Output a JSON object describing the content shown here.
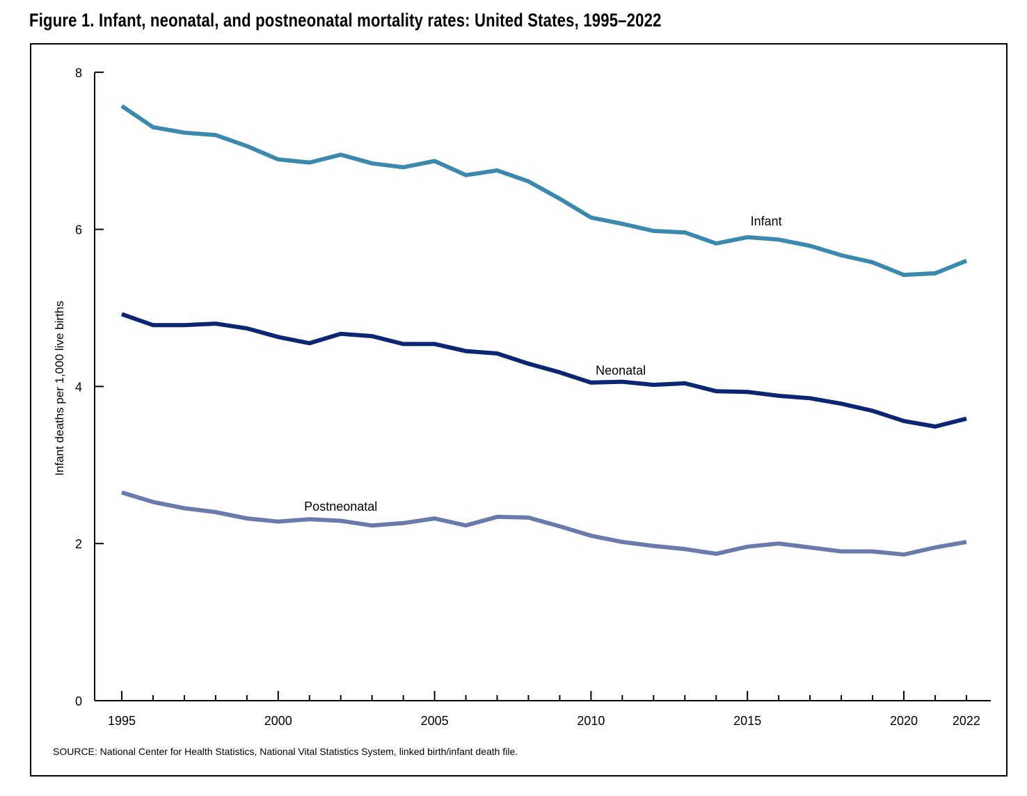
{
  "figure": {
    "title": "Figure 1. Infant, neonatal, and postneonatal mortality rates: United States, 1995–2022",
    "source": "SOURCE: National Center for Health Statistics, National Vital Statistics System, linked birth/infant death file."
  },
  "chart_data": {
    "type": "line",
    "title": "Figure 1. Infant, neonatal, and postneonatal mortality rates: United States, 1995–2022",
    "xlabel": "",
    "ylabel": "Infant deaths per 1,000 live births",
    "ylim": [
      0,
      8
    ],
    "xlim": [
      1995,
      2022
    ],
    "yticks": [
      0,
      2,
      4,
      6,
      8
    ],
    "xtick_labels": [
      "1995",
      "2000",
      "2005",
      "2010",
      "2015",
      "2020",
      "2022"
    ],
    "grid": false,
    "legend": "inline labels",
    "x": [
      1995,
      1996,
      1997,
      1998,
      1999,
      2000,
      2001,
      2002,
      2003,
      2004,
      2005,
      2006,
      2007,
      2008,
      2009,
      2010,
      2011,
      2012,
      2013,
      2014,
      2015,
      2016,
      2017,
      2018,
      2019,
      2020,
      2021,
      2022
    ],
    "series": [
      {
        "name": "Infant",
        "color": "#3b8aad",
        "label_year": 2015.6,
        "label_value": 6.05,
        "values": [
          7.57,
          7.3,
          7.23,
          7.2,
          7.06,
          6.89,
          6.85,
          6.95,
          6.84,
          6.79,
          6.87,
          6.69,
          6.75,
          6.61,
          6.39,
          6.15,
          6.07,
          5.98,
          5.96,
          5.82,
          5.9,
          5.87,
          5.79,
          5.67,
          5.58,
          5.42,
          5.44,
          5.6
        ]
      },
      {
        "name": "Neonatal",
        "color": "#0d2673",
        "label_year": 2010.95,
        "label_value": 4.15,
        "values": [
          4.92,
          4.78,
          4.78,
          4.8,
          4.74,
          4.63,
          4.55,
          4.67,
          4.64,
          4.54,
          4.54,
          4.45,
          4.42,
          4.29,
          4.18,
          4.05,
          4.06,
          4.02,
          4.04,
          3.94,
          3.93,
          3.88,
          3.85,
          3.78,
          3.69,
          3.56,
          3.49,
          3.59
        ]
      },
      {
        "name": "Postneonatal",
        "color": "#6b7aad",
        "label_year": 2002.0,
        "label_value": 2.42,
        "values": [
          2.65,
          2.53,
          2.45,
          2.4,
          2.32,
          2.28,
          2.31,
          2.29,
          2.23,
          2.26,
          2.32,
          2.23,
          2.34,
          2.33,
          2.22,
          2.1,
          2.02,
          1.97,
          1.93,
          1.87,
          1.96,
          2.0,
          1.95,
          1.9,
          1.9,
          1.86,
          1.95,
          2.02
        ]
      }
    ]
  }
}
